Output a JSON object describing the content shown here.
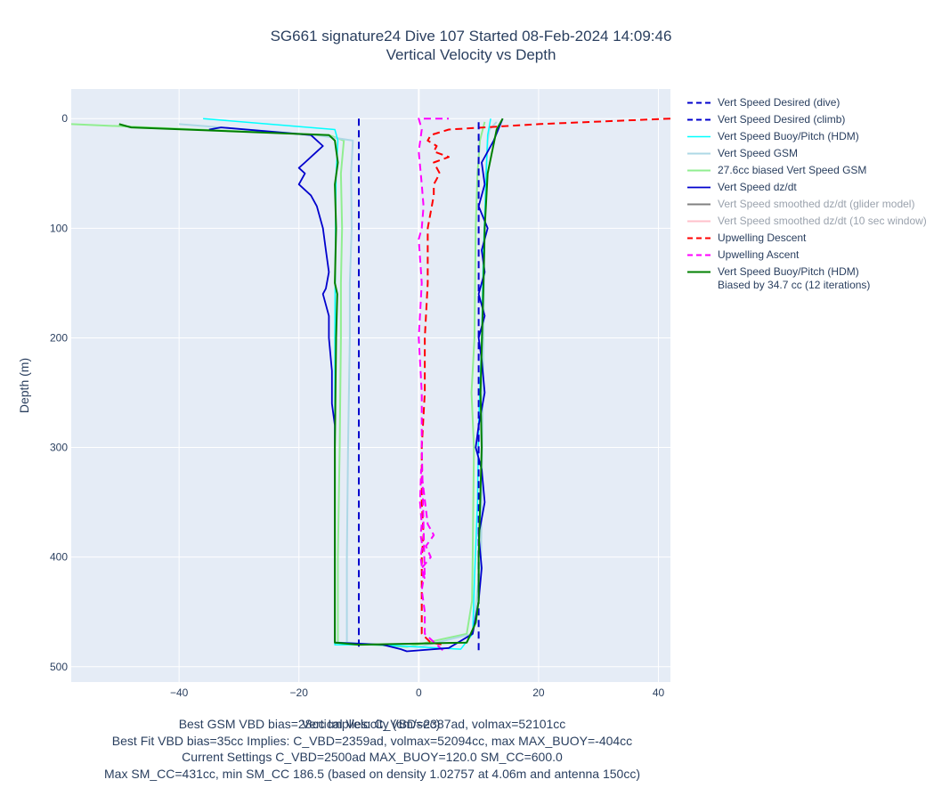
{
  "chart_data": {
    "type": "line",
    "title": "SG661 signature24 Dive 107 Started 08-Feb-2024 14:09:46",
    "subtitle": "Vertical Velocity vs Depth",
    "xlabel": "Vertical Velocity (cm/sec)",
    "ylabel": "Depth (m)",
    "xlim": [
      -58,
      42
    ],
    "ylim": [
      514,
      -27
    ],
    "y_reversed": true,
    "x_ticks": [
      -40,
      -20,
      0,
      20,
      40
    ],
    "x_tick_labels": [
      "−40",
      "−20",
      "0",
      "20",
      "40"
    ],
    "y_ticks": [
      0,
      100,
      200,
      300,
      400,
      500
    ],
    "y_tick_labels": [
      "0",
      "100",
      "200",
      "300",
      "400",
      "500"
    ],
    "grid": true,
    "legend_position": "right",
    "series": [
      {
        "name": "Vert Speed Desired (dive)",
        "color": "#0000cd",
        "dash": "dash",
        "width": 2,
        "faded": false,
        "x": [
          -10,
          -10
        ],
        "y": [
          0,
          485
        ]
      },
      {
        "name": "Vert Speed Desired (climb)",
        "color": "#0000cd",
        "dash": "dash",
        "width": 2,
        "faded": false,
        "x": [
          10,
          10
        ],
        "y": [
          485,
          0
        ]
      },
      {
        "name": "Vert Speed Buoy/Pitch (HDM)",
        "color": "#00ffff",
        "dash": "solid",
        "width": 1.5,
        "faded": false,
        "x": [
          -36,
          -14,
          -13.5,
          -13.8,
          -13.9,
          -14,
          -14,
          -14,
          -14,
          -14,
          -14,
          -7,
          7,
          9,
          9.3,
          9.8,
          10,
          10.5,
          10.8,
          11.2,
          11.5,
          12
        ],
        "y": [
          0,
          10,
          20,
          50,
          100,
          200,
          300,
          400,
          478,
          478,
          480,
          480,
          484,
          470,
          420,
          350,
          280,
          200,
          120,
          60,
          15,
          0
        ]
      },
      {
        "name": "Vert Speed GSM",
        "color": "#add8e6",
        "dash": "solid",
        "width": 2,
        "faded": false,
        "x": [
          -40,
          -17,
          -11,
          -11.3,
          -11.2,
          -11.5,
          -11.5,
          -11.8,
          -12,
          -12,
          0,
          9,
          10.4,
          10.6,
          10.8,
          11,
          11.2,
          11.5,
          11.8,
          13
        ],
        "y": [
          5,
          15,
          20,
          50,
          100,
          150,
          200,
          300,
          400,
          478,
          482,
          470,
          400,
          300,
          200,
          100,
          50,
          20,
          10,
          3
        ]
      },
      {
        "name": "27.6cc biased Vert Speed GSM",
        "color": "#90ee90",
        "dash": "solid",
        "width": 2,
        "faded": false,
        "x": [
          -58,
          -15,
          -12.5,
          -13,
          -12.8,
          -13,
          -13,
          -13.2,
          -13.5,
          -13.5,
          -2,
          8,
          8.9,
          9,
          9.2,
          8.8,
          9.3,
          9.5,
          9.8,
          10.2,
          11
        ],
        "y": [
          5,
          15,
          20,
          50,
          100,
          150,
          200,
          300,
          400,
          478,
          482,
          470,
          440,
          400,
          300,
          250,
          200,
          100,
          50,
          20,
          3
        ]
      },
      {
        "name": "Vert Speed dz/dt",
        "color": "#0000cd",
        "dash": "solid",
        "width": 1.8,
        "faded": false,
        "x": [
          -35,
          -33,
          -18,
          -16,
          -17,
          -18,
          -19,
          -20,
          -19,
          -20,
          -18,
          -17,
          -16,
          -15.5,
          -15,
          -15.5,
          -16,
          -15,
          -15,
          -14.5,
          -14.5,
          -14,
          -14,
          -14,
          -14,
          -10,
          -6,
          -3,
          -2,
          5,
          9,
          10,
          10.5,
          10,
          11,
          10.5,
          9.5,
          10,
          11,
          10.5,
          10,
          11,
          10,
          11,
          10.5,
          11.5,
          10,
          11,
          10.5,
          12.5,
          14
        ],
        "y": [
          10,
          8,
          15,
          25,
          30,
          35,
          40,
          45,
          50,
          60,
          70,
          80,
          100,
          120,
          140,
          155,
          160,
          180,
          200,
          230,
          260,
          280,
          300,
          400,
          478,
          479,
          480,
          484,
          486,
          483,
          470,
          440,
          410,
          380,
          350,
          320,
          300,
          280,
          250,
          220,
          200,
          180,
          160,
          140,
          120,
          100,
          80,
          60,
          40,
          20,
          0
        ]
      },
      {
        "name": "Vert Speed smoothed dz/dt (glider model)",
        "color": "#808080",
        "dash": "solid",
        "width": 2,
        "faded": true,
        "x": [],
        "y": []
      },
      {
        "name": "Vert Speed smoothed dz/dt (10 sec window)",
        "color": "#ffc0cb",
        "dash": "solid",
        "width": 2,
        "faded": true,
        "x": [],
        "y": []
      },
      {
        "name": "Upwelling Descent",
        "color": "#ff0000",
        "dash": "dash",
        "width": 2,
        "faded": false,
        "x": [
          42,
          20,
          5,
          2,
          1.5,
          3,
          2.5,
          5,
          2.5,
          3.5,
          2.5,
          2.5,
          1.5,
          1.5,
          1,
          1,
          0.5,
          0.5,
          0.5,
          0.8,
          0.5,
          0.5,
          0.5,
          2,
          4
        ],
        "y": [
          0,
          5,
          10,
          15,
          20,
          25,
          30,
          35,
          40,
          50,
          60,
          70,
          100,
          150,
          200,
          250,
          300,
          330,
          350,
          380,
          400,
          440,
          470,
          478,
          480
        ]
      },
      {
        "name": "Upwelling Ascent",
        "color": "#ff00ff",
        "dash": "dash",
        "width": 2,
        "faded": false,
        "x": [
          4,
          1,
          1,
          0.5,
          0.8,
          0.3,
          0.6,
          0.3,
          0.5,
          0.2,
          0.4,
          1.5,
          2.5,
          1.2,
          2,
          0.5,
          1,
          0.5,
          0.5,
          0,
          0.5,
          0,
          0.5,
          0.8,
          0.5,
          0,
          0.5,
          0,
          5
        ],
        "y": [
          485,
          470,
          450,
          430,
          420,
          400,
          390,
          380,
          370,
          350,
          320,
          370,
          380,
          390,
          400,
          410,
          420,
          300,
          250,
          200,
          150,
          110,
          100,
          80,
          60,
          30,
          10,
          0,
          0
        ]
      },
      {
        "name": "Vert Speed Buoy/Pitch (HDM)",
        "name2": "Biased by 34.7 cc (12 iterations)",
        "color": "#008000",
        "dash": "solid",
        "width": 2,
        "faded": false,
        "x": [
          -50,
          -48,
          -15,
          -14,
          -13.5,
          -14,
          -13.8,
          -14,
          -13.6,
          -13.8,
          -13.9,
          -14,
          -14,
          -14,
          -10,
          8,
          9.5,
          10,
          10,
          10.5,
          10.3,
          10.8,
          11,
          11.5,
          13,
          14
        ],
        "y": [
          5,
          8,
          15,
          20,
          40,
          60,
          100,
          150,
          160,
          200,
          250,
          300,
          400,
          478,
          480,
          478,
          460,
          440,
          400,
          300,
          250,
          150,
          100,
          50,
          10,
          0
        ]
      }
    ]
  },
  "legend_items": [
    "Vert Speed Desired (dive)",
    "Vert Speed Desired (climb)",
    "Vert Speed Buoy/Pitch (HDM)",
    "Vert Speed GSM",
    "27.6cc biased Vert Speed GSM",
    "Vert Speed dz/dt",
    "Vert Speed smoothed dz/dt (glider model)",
    "Vert Speed smoothed dz/dt (10 sec window)",
    "Upwelling Descent",
    "Upwelling Ascent",
    "Vert Speed Buoy/Pitch (HDM)"
  ],
  "legend_last_line2": "Biased by 34.7 cc (12 iterations)",
  "notes": [
    "Best GSM VBD bias=28cc Implies: C_VBD=2387ad, volmax=52101cc",
    "Best Fit VBD bias=35cc Implies: C_VBD=2359ad, volmax=52094cc, max MAX_BUOY=-404cc",
    "Current Settings C_VBD=2500ad MAX_BUOY=120.0 SM_CC=600.0",
    "Max SM_CC=431cc, min SM_CC 186.5 (based on density 1.02757 at 4.06m and antenna 150cc)"
  ]
}
